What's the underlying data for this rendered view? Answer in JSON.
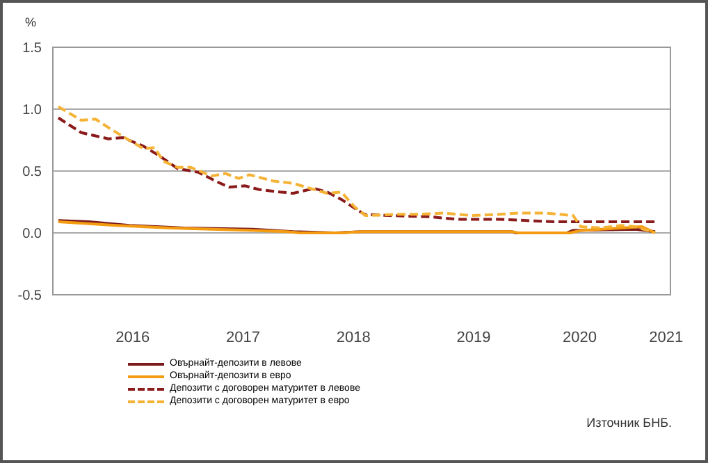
{
  "chart_data": {
    "type": "line",
    "ylabel": "%",
    "xlim": [
      2015.45,
      2021.1
    ],
    "xticks": [
      {
        "value": 2016.18,
        "label": "2016"
      },
      {
        "value": 2017.19,
        "label": "2017"
      },
      {
        "value": 2018.2,
        "label": "2018"
      },
      {
        "value": 2019.3,
        "label": "2019"
      },
      {
        "value": 2020.27,
        "label": "2020"
      },
      {
        "value": 2021.06,
        "label": "2021"
      }
    ],
    "ylim": [
      -0.5,
      1.5
    ],
    "yticks": [
      {
        "value": -0.5,
        "label": "-0.5"
      },
      {
        "value": 0,
        "label": "0.0"
      },
      {
        "value": 0.5,
        "label": "0.5"
      },
      {
        "value": 1,
        "label": "1.0"
      },
      {
        "value": 1.5,
        "label": "1.5"
      }
    ],
    "grid": "y",
    "legend": "bottom left",
    "marker": "none",
    "annotations": [
      "Източник БНБ."
    ],
    "series": [
      {
        "name": "Овърнайт-депозити   в левове",
        "color": "#7b1a1a",
        "line_style": "solid",
        "x": [
          2015.5,
          2015.78,
          2016.15,
          2016.65,
          2017.28,
          2017.65,
          2018.03,
          2018.28,
          2018.78,
          2019.65,
          2019.68,
          2020.15,
          2020.21,
          2020.78,
          2020.96
        ],
        "values": [
          0.1,
          0.09,
          0.06,
          0.04,
          0.03,
          0.01,
          0.0,
          0.01,
          0.01,
          0.01,
          0.0,
          0.0,
          0.02,
          0.03,
          0.01
        ]
      },
      {
        "name": "Овърнайт-депозити   в евро",
        "color": "#f39c12",
        "line_style": "solid",
        "x": [
          2015.5,
          2016.03,
          2016.53,
          2017.28,
          2017.59,
          2017.71,
          2018.09,
          2018.28,
          2019.65,
          2019.71,
          2020.18,
          2020.28,
          2020.65,
          2020.84,
          2020.96
        ],
        "values": [
          0.09,
          0.06,
          0.04,
          0.02,
          0.01,
          0.0,
          0.0,
          0.01,
          0.01,
          0.0,
          0.0,
          0.02,
          0.04,
          0.05,
          0.0
        ]
      },
      {
        "name": "Депозити с договорен  матуритет в левове",
        "color": "#8b1a1a",
        "line_style": "dashed",
        "x": [
          2015.5,
          2015.71,
          2015.96,
          2016.09,
          2016.28,
          2016.43,
          2016.59,
          2016.78,
          2016.96,
          2017.06,
          2017.21,
          2017.34,
          2017.53,
          2017.65,
          2017.84,
          2017.96,
          2018.09,
          2018.21,
          2018.3,
          2018.53,
          2018.9,
          2019.15,
          2019.53,
          2020.03,
          2020.28,
          2020.78,
          2020.96
        ],
        "values": [
          0.93,
          0.81,
          0.76,
          0.77,
          0.7,
          0.62,
          0.52,
          0.49,
          0.41,
          0.37,
          0.38,
          0.35,
          0.33,
          0.32,
          0.36,
          0.33,
          0.27,
          0.2,
          0.15,
          0.14,
          0.13,
          0.11,
          0.11,
          0.09,
          0.09,
          0.09,
          0.09
        ]
      },
      {
        "name": "Депозити с договорен  матуритет в евро",
        "color": "#f5b335",
        "line_style": "dashed",
        "x": [
          2015.5,
          2015.71,
          2015.84,
          2015.96,
          2016.09,
          2016.28,
          2016.38,
          2016.46,
          2016.59,
          2016.71,
          2016.9,
          2017.03,
          2017.15,
          2017.25,
          2017.46,
          2017.65,
          2017.84,
          2017.96,
          2018.09,
          2018.21,
          2018.31,
          2018.59,
          2018.78,
          2019.03,
          2019.28,
          2019.53,
          2019.71,
          2019.96,
          2020.21,
          2020.28,
          2020.46,
          2020.65,
          2020.78,
          2020.96
        ],
        "values": [
          1.02,
          0.91,
          0.92,
          0.85,
          0.78,
          0.68,
          0.69,
          0.58,
          0.53,
          0.53,
          0.46,
          0.48,
          0.44,
          0.47,
          0.42,
          0.4,
          0.35,
          0.32,
          0.33,
          0.21,
          0.14,
          0.15,
          0.15,
          0.16,
          0.14,
          0.15,
          0.16,
          0.16,
          0.14,
          0.05,
          0.04,
          0.06,
          0.05,
          0.0
        ]
      }
    ]
  }
}
